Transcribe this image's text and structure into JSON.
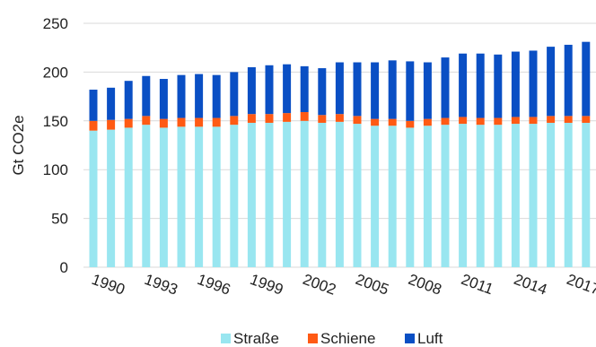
{
  "chart_data": {
    "type": "bar",
    "stacked": true,
    "ylabel": "Gt CO2e",
    "ylim": [
      0,
      250
    ],
    "yticks": [
      0,
      50,
      100,
      150,
      200,
      250
    ],
    "grid": true,
    "legend_position": "bottom",
    "x_tick_labels": [
      "1990",
      "1993",
      "1996",
      "1999",
      "2002",
      "2005",
      "2008",
      "2011",
      "2014",
      "2017"
    ],
    "categories": [
      1990,
      1991,
      1992,
      1993,
      1994,
      1995,
      1996,
      1997,
      1998,
      1999,
      2000,
      2001,
      2002,
      2003,
      2004,
      2005,
      2006,
      2007,
      2008,
      2009,
      2010,
      2011,
      2012,
      2013,
      2014,
      2015,
      2016,
      2017,
      2018
    ],
    "series": [
      {
        "name": "Straße",
        "color": "#99e6f0",
        "values": [
          140,
          141,
          143,
          146,
          143,
          144,
          144,
          144,
          146,
          148,
          148,
          149,
          150,
          148,
          149,
          147,
          145,
          145,
          143,
          145,
          146,
          147,
          146,
          146,
          147,
          147,
          148,
          148,
          148
        ]
      },
      {
        "name": "Schiene",
        "color": "#ff5a14",
        "values": [
          10,
          10,
          9,
          9,
          9,
          9,
          9,
          9,
          9,
          9,
          9,
          9,
          9,
          8,
          8,
          8,
          7,
          7,
          7,
          7,
          7,
          7,
          7,
          7,
          7,
          7,
          7,
          7,
          7
        ]
      },
      {
        "name": "Luft",
        "color": "#0a4fc4",
        "values": [
          32,
          33,
          39,
          41,
          41,
          44,
          45,
          44,
          45,
          48,
          50,
          50,
          47,
          48,
          53,
          55,
          58,
          60,
          61,
          58,
          62,
          65,
          66,
          65,
          67,
          68,
          71,
          73,
          76
        ]
      }
    ]
  }
}
